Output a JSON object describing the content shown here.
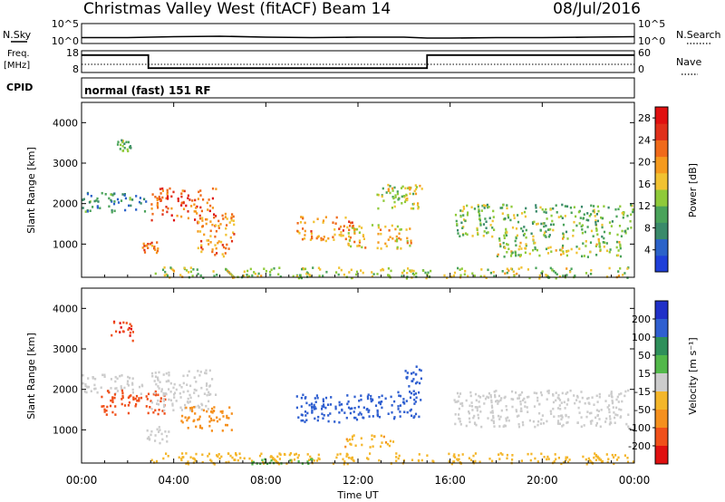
{
  "header": {
    "station": "Christmas Valley West (fitACF)",
    "beam": "Beam 14",
    "date": "08/Jul/2016",
    "mode": "normal (fast) 151 RF"
  },
  "labels": {
    "nsky": "N.Sky",
    "nsearch": "N.Search",
    "freq_line1": "Freq.",
    "freq_line2": "[MHz]",
    "nave": "Nave",
    "cpid": "CPID",
    "slant_range": "Slant Range [km]",
    "time_ut": "Time UT",
    "power": "Power [dB]",
    "velocity": "Velocity [m s⁻¹]"
  },
  "colors": {
    "power": [
      "#1f3fd9",
      "#2b62c9",
      "#3a8a6a",
      "#4aa35a",
      "#8fca3a",
      "#f1c232",
      "#f59a1e",
      "#f06a1a",
      "#e0301a",
      "#e01010"
    ],
    "velocity": [
      "#e01010",
      "#f0501a",
      "#f5901e",
      "#f4b62a",
      "#cccccc",
      "#cccccc",
      "#52b84a",
      "#2e8f5a",
      "#2f5fd0",
      "#2030c8"
    ]
  },
  "chart_data": [
    {
      "type": "line",
      "panel": "noise",
      "y_left_ticks": [
        "10^5",
        "10^0"
      ],
      "y_right_ticks": [
        "10^5",
        "10^0"
      ],
      "series": [
        {
          "name": "N.Sky",
          "x_hours": [
            0,
            2,
            4,
            6,
            8,
            10,
            12,
            14,
            15,
            16,
            18,
            20,
            22,
            24
          ],
          "level": [
            0.25,
            0.25,
            0.35,
            0.4,
            0.3,
            0.25,
            0.3,
            0.3,
            0.2,
            0.2,
            0.25,
            0.25,
            0.3,
            0.35
          ]
        }
      ]
    },
    {
      "type": "line",
      "panel": "frequency",
      "y_left_ticks": [
        "18",
        "8"
      ],
      "y_right_ticks": [
        "60",
        "0"
      ],
      "series": [
        {
          "name": "Freq.",
          "step_hours": [
            0,
            2.9,
            15,
            24
          ],
          "values_mhz": [
            16,
            10,
            16,
            16
          ]
        }
      ]
    },
    {
      "type": "heatmap",
      "panel": "power",
      "ylabel": "Slant Range [km]",
      "ylim": [
        180,
        4500
      ],
      "y_ticks": [
        1000,
        2000,
        3000,
        4000
      ],
      "xlim_hours": [
        0,
        24
      ],
      "colorbar_label": "Power [dB]",
      "colorbar_ticks": [
        4,
        8,
        12,
        16,
        20,
        24,
        28
      ],
      "colorbar_range": [
        0,
        30
      ],
      "patches": [
        {
          "t0": 0.0,
          "t1": 2.8,
          "r0": 1800,
          "r1": 2300,
          "value": 8
        },
        {
          "t0": 1.5,
          "t1": 2.1,
          "r0": 3300,
          "r1": 3600,
          "value": 12
        },
        {
          "t0": 2.6,
          "t1": 3.3,
          "r0": 800,
          "r1": 1100,
          "value": 22
        },
        {
          "t0": 3.0,
          "t1": 5.8,
          "r0": 1600,
          "r1": 2400,
          "value": 24
        },
        {
          "t0": 5.0,
          "t1": 6.6,
          "r0": 700,
          "r1": 1800,
          "value": 20
        },
        {
          "t0": 9.3,
          "t1": 11.8,
          "r0": 1100,
          "r1": 1700,
          "value": 20
        },
        {
          "t0": 11.5,
          "t1": 14.3,
          "r0": 900,
          "r1": 1500,
          "value": 18
        },
        {
          "t0": 12.8,
          "t1": 14.6,
          "r0": 1900,
          "r1": 2500,
          "value": 14
        },
        {
          "t0": 14.0,
          "t1": 14.8,
          "r0": 1900,
          "r1": 2500,
          "value": 16
        },
        {
          "t0": 16.2,
          "t1": 23.9,
          "r0": 1200,
          "r1": 2000,
          "value": 12
        },
        {
          "t0": 18.0,
          "t1": 23.5,
          "r0": 700,
          "r1": 1200,
          "value": 14
        },
        {
          "t0": 3.0,
          "t1": 24.0,
          "r0": 180,
          "r1": 450,
          "value": 14
        }
      ]
    },
    {
      "type": "heatmap",
      "panel": "velocity",
      "ylabel": "Slant Range [km]",
      "ylim": [
        180,
        4500
      ],
      "y_ticks": [
        1000,
        2000,
        3000,
        4000
      ],
      "xlim_hours": [
        0,
        24
      ],
      "x_ticks": [
        "00:00",
        "04:00",
        "08:00",
        "12:00",
        "16:00",
        "20:00",
        "00:00"
      ],
      "xlabel": "Time UT",
      "colorbar_label": "Velocity [m s⁻¹]",
      "colorbar_ticks": [
        200,
        100,
        50,
        15,
        -15,
        -50,
        -100,
        -200
      ],
      "patches": [
        {
          "t0": 1.2,
          "t1": 2.2,
          "r0": 3200,
          "r1": 3700,
          "value": -200
        },
        {
          "t0": 0.0,
          "t1": 2.6,
          "r0": 1900,
          "r1": 2400,
          "value": 0
        },
        {
          "t0": 0.8,
          "t1": 3.6,
          "r0": 1400,
          "r1": 2000,
          "value": -150
        },
        {
          "t0": 3.0,
          "t1": 5.8,
          "r0": 1500,
          "r1": 2500,
          "value": 0
        },
        {
          "t0": 4.3,
          "t1": 6.6,
          "r0": 1000,
          "r1": 1600,
          "value": -80
        },
        {
          "t0": 2.8,
          "t1": 3.8,
          "r0": 700,
          "r1": 1100,
          "value": 0
        },
        {
          "t0": 9.3,
          "t1": 12.5,
          "r0": 1200,
          "r1": 1900,
          "value": 160
        },
        {
          "t0": 12.3,
          "t1": 14.7,
          "r0": 1300,
          "r1": 2000,
          "value": 160
        },
        {
          "t0": 14.0,
          "t1": 14.8,
          "r0": 2100,
          "r1": 2600,
          "value": 160
        },
        {
          "t0": 11.3,
          "t1": 13.5,
          "r0": 600,
          "r1": 900,
          "value": -40
        },
        {
          "t0": 16.0,
          "t1": 23.8,
          "r0": 1100,
          "r1": 2000,
          "value": 0
        },
        {
          "t0": 3.0,
          "t1": 24.0,
          "r0": 180,
          "r1": 450,
          "value": -30
        },
        {
          "t0": 7.0,
          "t1": 10.0,
          "r0": 180,
          "r1": 300,
          "value": 30
        }
      ]
    }
  ]
}
